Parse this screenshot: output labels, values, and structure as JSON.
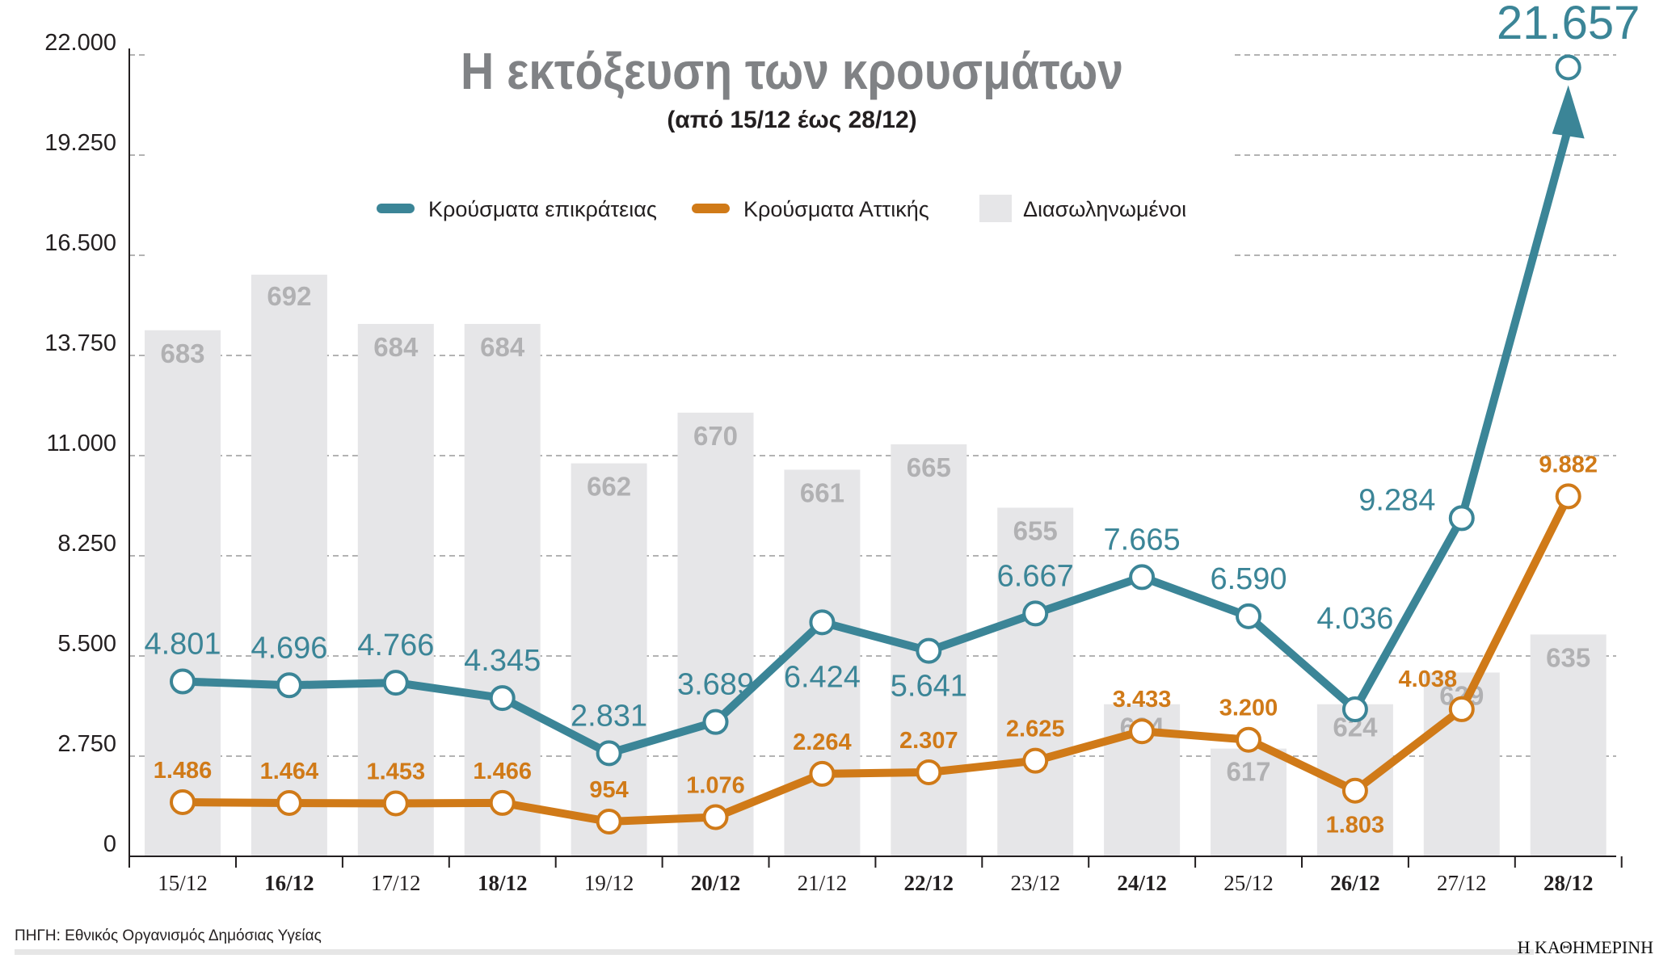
{
  "chart_data": {
    "type": "bar+line",
    "title": "Η εκτόξευση των κρουσμάτων",
    "subtitle": "(από 15/12 έως 28/12)",
    "categories": [
      "15/12",
      "16/12",
      "17/12",
      "18/12",
      "19/12",
      "20/12",
      "21/12",
      "22/12",
      "23/12",
      "24/12",
      "25/12",
      "26/12",
      "27/12",
      "28/12"
    ],
    "bold_categories": [
      "16/12",
      "18/12",
      "20/12",
      "22/12",
      "24/12",
      "26/12",
      "28/12"
    ],
    "ylim": [
      0,
      22000
    ],
    "yticks": [
      0,
      2750,
      5500,
      8250,
      11000,
      13750,
      16500,
      19250,
      22000
    ],
    "ytick_labels": [
      "0",
      "2.750",
      "5.500",
      "8.250",
      "11.000",
      "13.750",
      "16.500",
      "19.250",
      "22.000"
    ],
    "grid": true,
    "legend_position": "top-center",
    "series": [
      {
        "name": "Κρούσματα επικράτειας",
        "type": "line",
        "color": "#3b8597",
        "values": [
          4801,
          4696,
          4766,
          4345,
          2831,
          3689,
          6424,
          5641,
          6667,
          7665,
          6590,
          4036,
          9284,
          21657
        ],
        "labels": [
          "4.801",
          "4.696",
          "4.766",
          "4.345",
          "2.831",
          "3.689",
          "6.424",
          "5.641",
          "6.667",
          "7.665",
          "6.590",
          "4.036",
          "9.284",
          "21.657"
        ]
      },
      {
        "name": "Κρούσματα Αττικής",
        "type": "line",
        "color": "#d07a18",
        "values": [
          1486,
          1464,
          1453,
          1466,
          954,
          1076,
          2264,
          2307,
          2625,
          3433,
          3200,
          1803,
          4038,
          9882
        ],
        "labels": [
          "1.486",
          "1.464",
          "1.453",
          "1.466",
          "954",
          "1.076",
          "2.264",
          "2.307",
          "2.625",
          "3.433",
          "3.200",
          "1.803",
          "4.038",
          "9.882"
        ]
      },
      {
        "name": "Διασωληνωμένοι",
        "type": "bar",
        "color": "#e6e6e8",
        "label_color": "#b1b1b3",
        "values": [
          683,
          692,
          684,
          684,
          662,
          670,
          661,
          665,
          655,
          624,
          617,
          624,
          629,
          635
        ]
      }
    ]
  },
  "footer": {
    "source": "ΠΗΓΗ: Εθνικός Οργανισμός Δημόσιας Υγείας",
    "brand": "Η ΚΑΘΗΜΕΡΙΝΗ"
  }
}
